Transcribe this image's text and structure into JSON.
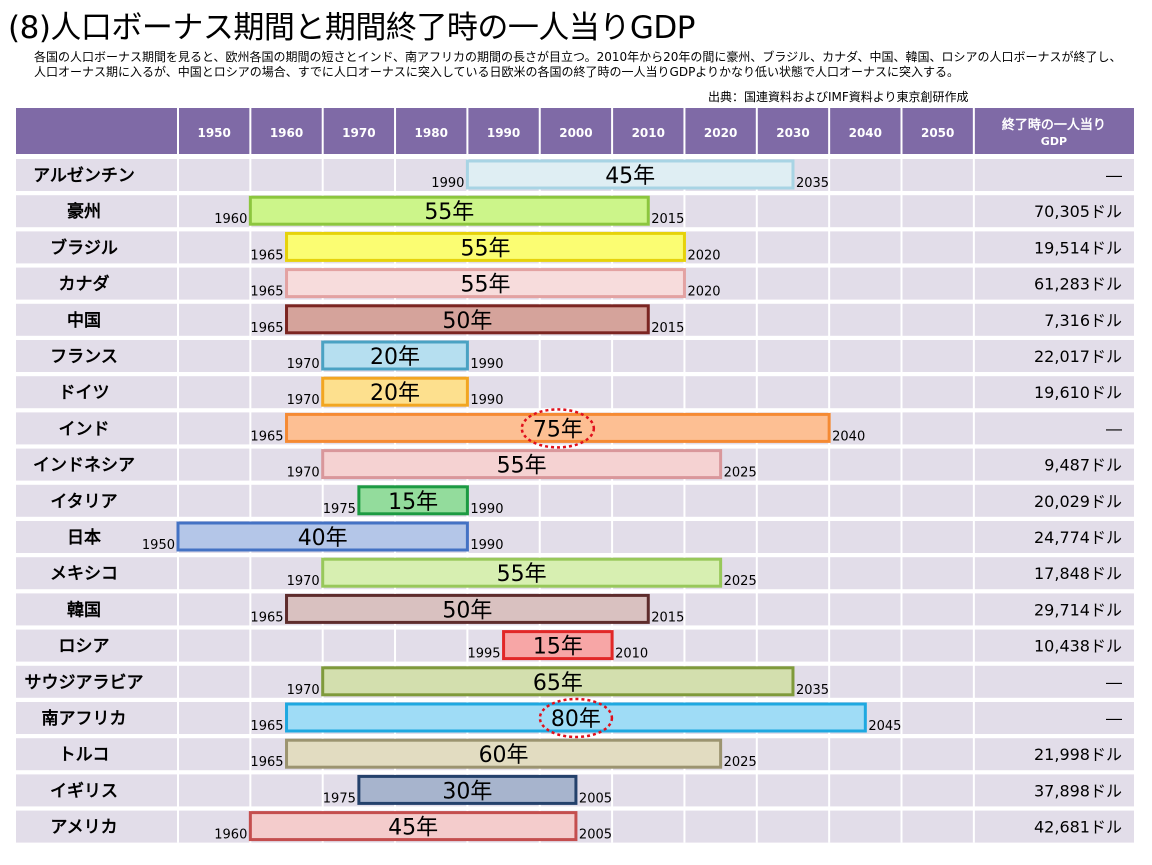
{
  "title": "(8)人口ボーナス期間と期間終了時の一人当りGDP",
  "description": "各国の人口ボーナス期間を見ると、欧州各国の期間の短さとインド、南アフリカの期間の長さが目立つ。2010年から20年の間に豪州、ブラジル、カナダ、中国、韓国、ロシアの人口ボーナスが終了し、人口オーナス期に入るが、中国とロシアの場合、すでに人口オーナスに突入している日欧米の各国の終了時の一人当りGDPよりかなり低い状態で人口オーナスに突入する。",
  "source": "出典：国連資料およびIMF資料より東京創研作成",
  "colors": {
    "header_bg": "#7f6aa6",
    "row_bg": "#e2dde9",
    "grid_line": "#ffffff",
    "highlight_circle": "#e0101c"
  },
  "chart_data": {
    "type": "range-bar",
    "x_ticks": [
      "1950",
      "1960",
      "1970",
      "1980",
      "1990",
      "2000",
      "2010",
      "2020",
      "2030",
      "2040",
      "2050"
    ],
    "gdp_header": [
      "終了時の一人当り",
      "GDP"
    ],
    "unit_suffix": "年",
    "rows": [
      {
        "country": "アルゼンチン",
        "start": 1990,
        "end": 2035,
        "duration": "45年",
        "start_label": "1990",
        "end_label": "2035",
        "gdp": "―",
        "fill": "#dfeef3",
        "stroke": "#a8d4e4"
      },
      {
        "country": "豪州",
        "start": 1960,
        "end": 2015,
        "duration": "55年",
        "start_label": "1960",
        "end_label": "2015",
        "gdp": "70,305ドル",
        "fill": "#ccf58a",
        "stroke": "#8cc63e"
      },
      {
        "country": "ブラジル",
        "start": 1965,
        "end": 2020,
        "duration": "55年",
        "start_label": "1965",
        "end_label": "2020",
        "gdp": "19,514ドル",
        "fill": "#fbfd72",
        "stroke": "#e6d20a"
      },
      {
        "country": "カナダ",
        "start": 1965,
        "end": 2020,
        "duration": "55年",
        "start_label": "1965",
        "end_label": "2020",
        "gdp": "61,283ドル",
        "fill": "#f7dcdc",
        "stroke": "#e3a2a2"
      },
      {
        "country": "中国",
        "start": 1965,
        "end": 2015,
        "duration": "50年",
        "start_label": "1965",
        "end_label": "2015",
        "gdp": "7,316ドル",
        "fill": "#d5a39b",
        "stroke": "#7b2521"
      },
      {
        "country": "フランス",
        "start": 1970,
        "end": 1990,
        "duration": "20年",
        "start_label": "1970",
        "end_label": "1990",
        "gdp": "22,017ドル",
        "fill": "#b6dff0",
        "stroke": "#4aa2c3"
      },
      {
        "country": "ドイツ",
        "start": 1970,
        "end": 1990,
        "duration": "20年",
        "start_label": "1970",
        "end_label": "1990",
        "gdp": "19,610ドル",
        "fill": "#fde08e",
        "stroke": "#f2a621"
      },
      {
        "country": "インド",
        "start": 1965,
        "end": 2040,
        "duration": "75年",
        "start_label": "1965",
        "end_label": "2040",
        "gdp": "―",
        "fill": "#fdbf93",
        "stroke": "#f58a33",
        "highlight": true
      },
      {
        "country": "インドネシア",
        "start": 1970,
        "end": 2025,
        "duration": "55年",
        "start_label": "1970",
        "end_label": "2025",
        "gdp": "9,487ドル",
        "fill": "#f5d2d2",
        "stroke": "#d9979b"
      },
      {
        "country": "イタリア",
        "start": 1975,
        "end": 1990,
        "duration": "15年",
        "start_label": "1975",
        "end_label": "1990",
        "gdp": "20,029ドル",
        "fill": "#93dc9c",
        "stroke": "#1c9a42"
      },
      {
        "country": "日本",
        "start": 1950,
        "end": 1990,
        "duration": "40年",
        "start_label": "1950",
        "end_label": "1990",
        "gdp": "24,774ドル",
        "fill": "#b4c6e8",
        "stroke": "#4472c4"
      },
      {
        "country": "メキシコ",
        "start": 1970,
        "end": 2025,
        "duration": "55年",
        "start_label": "1970",
        "end_label": "2025",
        "gdp": "17,848ドル",
        "fill": "#d7efb1",
        "stroke": "#98c85a"
      },
      {
        "country": "韓国",
        "start": 1965,
        "end": 2015,
        "duration": "50年",
        "start_label": "1965",
        "end_label": "2015",
        "gdp": "29,714ドル",
        "fill": "#d9c1c0",
        "stroke": "#5e2c2c"
      },
      {
        "country": "ロシア",
        "start": 1995,
        "end": 2010,
        "duration": "15年",
        "start_label": "1995",
        "end_label": "2010",
        "gdp": "10,438ドル",
        "fill": "#f7a6a6",
        "stroke": "#e12727"
      },
      {
        "country": "サウジアラビア",
        "start": 1970,
        "end": 2035,
        "duration": "65年",
        "start_label": "1970",
        "end_label": "2035",
        "gdp": "―",
        "fill": "#d3dfae",
        "stroke": "#7f9a3b"
      },
      {
        "country": "南アフリカ",
        "start": 1965,
        "end": 2045,
        "duration": "80年",
        "start_label": "1965",
        "end_label": "2045",
        "gdp": "―",
        "fill": "#9fdcf6",
        "stroke": "#1ea8e0",
        "highlight": true
      },
      {
        "country": "トルコ",
        "start": 1965,
        "end": 2025,
        "duration": "60年",
        "start_label": "1965",
        "end_label": "2025",
        "gdp": "21,998ドル",
        "fill": "#e2dcc1",
        "stroke": "#9c9470"
      },
      {
        "country": "イギリス",
        "start": 1975,
        "end": 2005,
        "duration": "30年",
        "start_label": "1975",
        "end_label": "2005",
        "gdp": "37,898ドル",
        "fill": "#a7b4cd",
        "stroke": "#24416b"
      },
      {
        "country": "アメリカ",
        "start": 1960,
        "end": 2005,
        "duration": "45年",
        "start_label": "1960",
        "end_label": "2005",
        "gdp": "42,681ドル",
        "fill": "#f4cccc",
        "stroke": "#c44e4e"
      }
    ]
  }
}
